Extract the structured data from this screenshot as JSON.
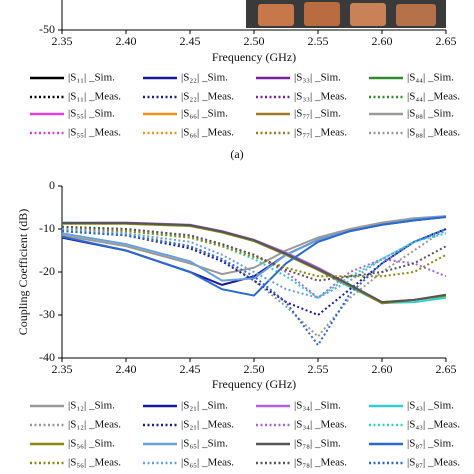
{
  "chart_data": [
    {
      "type": "line",
      "xlabel": "Frequency (GHz)",
      "caption": "(a)",
      "xlim": [
        2.35,
        2.65
      ],
      "xticks": [
        {
          "value": 2.35,
          "label": "2.35"
        },
        {
          "value": 2.4,
          "label": "2.40"
        },
        {
          "value": 2.45,
          "label": "2.45"
        },
        {
          "value": 2.5,
          "label": "2.50"
        },
        {
          "value": 2.55,
          "label": "2.55"
        },
        {
          "value": 2.6,
          "label": "2.60"
        },
        {
          "value": 2.65,
          "label": "2.65"
        }
      ],
      "ylim": [
        -50,
        0
      ],
      "yticks": [
        -50
      ],
      "series": [
        {
          "name": "|S₁₁| _Sim.",
          "color": "#000000",
          "style": "solid"
        },
        {
          "name": "|S₂₂| _Sim.",
          "color": "#1a1a9c",
          "style": "solid"
        },
        {
          "name": "|S₃₃| _Sim.",
          "color": "#7a1fa0",
          "style": "solid"
        },
        {
          "name": "|S₄₄| _Sim.",
          "color": "#2e8b2e",
          "style": "solid"
        },
        {
          "name": "|S₁₁| _Meas.",
          "color": "#000000",
          "style": "dotted"
        },
        {
          "name": "|S₂₂| _Meas.",
          "color": "#1a1a9c",
          "style": "dotted"
        },
        {
          "name": "|S₃₃| _Meas.",
          "color": "#7a1fa0",
          "style": "dotted"
        },
        {
          "name": "|S₄₄| _Meas.",
          "color": "#2e8b2e",
          "style": "dotted"
        },
        {
          "name": "|S₅₅| _Sim.",
          "color": "#e040e0",
          "style": "solid"
        },
        {
          "name": "|S₆₆| _Sim.",
          "color": "#f0901e",
          "style": "solid"
        },
        {
          "name": "|S₇₇| _Sim.",
          "color": "#a07a20",
          "style": "solid"
        },
        {
          "name": "|S₈₈| _Sim.",
          "color": "#999999",
          "style": "solid"
        },
        {
          "name": "|S₅₅| _Meas.",
          "color": "#e040e0",
          "style": "dotted"
        },
        {
          "name": "|S₆₆| _Meas.",
          "color": "#f0901e",
          "style": "dotted"
        },
        {
          "name": "|S₇₇| _Meas.",
          "color": "#a07a20",
          "style": "dotted"
        },
        {
          "name": "|S₈₈| _Meas.",
          "color": "#999999",
          "style": "dotted"
        }
      ]
    },
    {
      "type": "line",
      "xlabel": "Frequency (GHz)",
      "ylabel": "Coupling Coefficient (dB)",
      "x": [
        2.35,
        2.4,
        2.45,
        2.475,
        2.5,
        2.525,
        2.55,
        2.575,
        2.6,
        2.625,
        2.65
      ],
      "xlim": [
        2.35,
        2.65
      ],
      "xticks": [
        {
          "value": 2.35,
          "label": "2.35"
        },
        {
          "value": 2.4,
          "label": "2.40"
        },
        {
          "value": 2.45,
          "label": "2.45"
        },
        {
          "value": 2.5,
          "label": "2.50"
        },
        {
          "value": 2.55,
          "label": "2.55"
        },
        {
          "value": 2.6,
          "label": "2.60"
        },
        {
          "value": 2.65,
          "label": "2.65"
        }
      ],
      "ylim": [
        -40,
        0
      ],
      "yticks": [
        0,
        -10,
        -20,
        -30,
        -40
      ],
      "series": [
        {
          "name": "|S₁₂| _Sim.",
          "color": "#999999",
          "style": "solid",
          "values": [
            -11.5,
            -14,
            -18,
            -20.5,
            -19,
            -15,
            -12,
            -10,
            -8.5,
            -7.5,
            -7
          ]
        },
        {
          "name": "|S₂₁| _Sim.",
          "color": "#1a1aa0",
          "style": "solid",
          "values": [
            -12,
            -15,
            -20,
            -23,
            -21,
            -16,
            -12.5,
            -10.5,
            -9,
            -8,
            -7.2
          ]
        },
        {
          "name": "|S₃₄| _Sim.",
          "color": "#b060e0",
          "style": "solid",
          "values": [
            -8.5,
            -8.5,
            -9,
            -10.5,
            -12.5,
            -15.5,
            -19,
            -23,
            -27,
            -26.5,
            -25.5
          ]
        },
        {
          "name": "|S₄₃| _Sim.",
          "color": "#30d0d0",
          "style": "solid",
          "values": [
            -8.5,
            -8.7,
            -9.2,
            -10.8,
            -12.8,
            -16,
            -19.5,
            -23.5,
            -27.2,
            -27,
            -26
          ]
        },
        {
          "name": "|S₁₂| _Meas.",
          "color": "#999999",
          "style": "dotted",
          "values": [
            -10,
            -11,
            -14,
            -17,
            -22,
            -28,
            -35,
            -26,
            -20,
            -15,
            -10
          ]
        },
        {
          "name": "|S₂₁| _Meas.",
          "color": "#1a1aa0",
          "style": "dotted",
          "values": [
            -10.5,
            -11.5,
            -14.5,
            -17.5,
            -22,
            -27,
            -30,
            -24,
            -18,
            -13,
            -10
          ]
        },
        {
          "name": "|S₃₄| _Meas.",
          "color": "#b060e0",
          "style": "dotted",
          "values": [
            -9.5,
            -10,
            -11.5,
            -13.5,
            -16,
            -20,
            -26,
            -20,
            -17,
            -18,
            -21
          ]
        },
        {
          "name": "|S₄₃| _Meas.",
          "color": "#30d0d0",
          "style": "dotted",
          "values": [
            -10,
            -10.5,
            -12,
            -14,
            -17,
            -21,
            -26,
            -21,
            -17,
            -13,
            -11
          ]
        },
        {
          "name": "|S₅₆| _Sim.",
          "color": "#8a8a10",
          "style": "solid",
          "values": [
            -8.8,
            -8.8,
            -9.3,
            -10.8,
            -12.8,
            -16,
            -19.5,
            -23.2,
            -27.3,
            -26.5,
            -25.5
          ]
        },
        {
          "name": "|S₆₅| _Sim.",
          "color": "#6aa0d8",
          "style": "solid",
          "values": [
            -11,
            -13.5,
            -17.5,
            -22,
            -21.5,
            -16,
            -12.5,
            -10.5,
            -9,
            -7.8,
            -7
          ]
        },
        {
          "name": "|S₇₈| _Sim.",
          "color": "#555555",
          "style": "solid",
          "values": [
            -8.6,
            -8.6,
            -9.1,
            -10.6,
            -12.6,
            -15.8,
            -19.3,
            -23,
            -27,
            -26.5,
            -25.3
          ]
        },
        {
          "name": "|S₈₇| _Sim.",
          "color": "#2a6ad0",
          "style": "solid",
          "values": [
            -11.8,
            -15,
            -20,
            -24,
            -25.5,
            -18,
            -13,
            -10.5,
            -9,
            -8,
            -7.2
          ]
        },
        {
          "name": "|S₅₆| _Meas.",
          "color": "#8a8a10",
          "style": "dotted",
          "values": [
            -10,
            -10.5,
            -12,
            -14,
            -16.5,
            -19,
            -21,
            -21,
            -21,
            -20,
            -16
          ]
        },
        {
          "name": "|S₆₅| _Meas.",
          "color": "#6aa0d8",
          "style": "dotted",
          "values": [
            -10,
            -11,
            -13,
            -16,
            -20,
            -24,
            -26,
            -22,
            -17,
            -13,
            -10.5
          ]
        },
        {
          "name": "|S₇₈| _Meas.",
          "color": "#555555",
          "style": "dotted",
          "values": [
            -9.5,
            -10,
            -11.5,
            -13.5,
            -16,
            -19.5,
            -22,
            -21,
            -20,
            -18,
            -14
          ]
        },
        {
          "name": "|S₈₇| _Meas.",
          "color": "#2a6ad0",
          "style": "dotted",
          "values": [
            -10.5,
            -11.5,
            -14,
            -17,
            -21,
            -27,
            -37,
            -25,
            -18,
            -13,
            -10
          ]
        }
      ]
    }
  ]
}
